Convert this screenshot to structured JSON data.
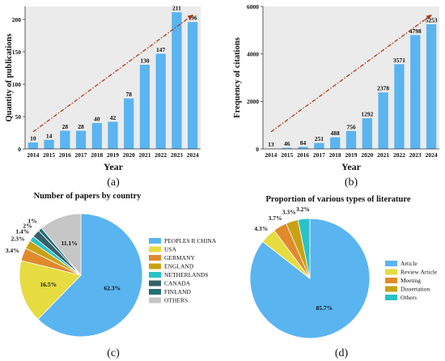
{
  "colors": {
    "bar": "#5ab4f0",
    "plot_bg": "#ebebeb",
    "arrow": "#b03a1a",
    "pie": [
      "#5ab4f0",
      "#e6dc40",
      "#e08a2c",
      "#c9a114",
      "#28c3c8",
      "#35606a",
      "#226e78",
      "#c6c6c6"
    ],
    "pie_d": [
      "#5ab4f0",
      "#e6dc40",
      "#e08a2c",
      "#c9a114",
      "#28c3c8"
    ]
  },
  "chart_data": [
    {
      "type": "bar",
      "panel_label": "(a)",
      "xlabel": "Year",
      "ylabel": "Quantity of publications",
      "categories": [
        "2014",
        "2015",
        "2016",
        "2017",
        "2018",
        "2019",
        "2020",
        "2021",
        "2022",
        "2023",
        "2024"
      ],
      "values": [
        10,
        14,
        28,
        28,
        40,
        42,
        78,
        130,
        147,
        211,
        196
      ],
      "value_labels": [
        "10",
        "14",
        "28",
        "28",
        "40",
        "42",
        "78",
        "130",
        "147",
        "211",
        "196"
      ],
      "ylim": [
        0,
        220
      ],
      "yticks": [
        0,
        50,
        100,
        150,
        200
      ],
      "ytick_labels": [
        "0",
        "50",
        "100",
        "150",
        "200"
      ],
      "grid": false,
      "trend_arrow": true
    },
    {
      "type": "bar",
      "panel_label": "(b)",
      "xlabel": "Year",
      "ylabel": "Frequency of citations",
      "categories": [
        "2014",
        "2015",
        "2016",
        "2017",
        "2018",
        "2019",
        "2020",
        "2021",
        "2022",
        "2023",
        "2024"
      ],
      "values": [
        13,
        46,
        84,
        251,
        488,
        756,
        1292,
        2378,
        3571,
        4798,
        5253
      ],
      "value_labels": [
        "13",
        "46",
        "84",
        "251",
        "488",
        "756",
        "1292",
        "2378",
        "3571",
        "4798",
        "5253"
      ],
      "ylim": [
        0,
        6000
      ],
      "yticks": [
        0,
        2000,
        4000,
        6000
      ],
      "ytick_labels": [
        "0",
        "2000",
        "4000",
        "6000"
      ],
      "grid": false,
      "trend_arrow": true
    },
    {
      "type": "pie",
      "panel_label": "(c)",
      "title": "Number of papers by country",
      "labels": [
        "PEOPLES R CHINA",
        "USA",
        "GERMANY",
        "ENGLAND",
        "NETHERLANDS",
        "CANADA",
        "FINLAND",
        "OTHERS"
      ],
      "values": [
        62.3,
        16.5,
        3.4,
        2.3,
        1.4,
        2.0,
        1.0,
        11.1
      ],
      "percent_labels": [
        "62.3%",
        "16.5%",
        "3.4%",
        "2.3%",
        "1.4%",
        "2%",
        "1%",
        "11.1%"
      ],
      "legend_position": "right"
    },
    {
      "type": "pie",
      "panel_label": "(d)",
      "title": "Proportion of various types of literature",
      "labels": [
        "Article",
        "Review Article",
        "Meeting",
        "Dissertation",
        "Others"
      ],
      "values": [
        85.7,
        4.3,
        3.7,
        3.3,
        3.2
      ],
      "percent_labels": [
        "85.7%",
        "4.3%",
        "3.7%",
        "3.3%",
        "3.2%"
      ],
      "legend_position": "right"
    }
  ]
}
